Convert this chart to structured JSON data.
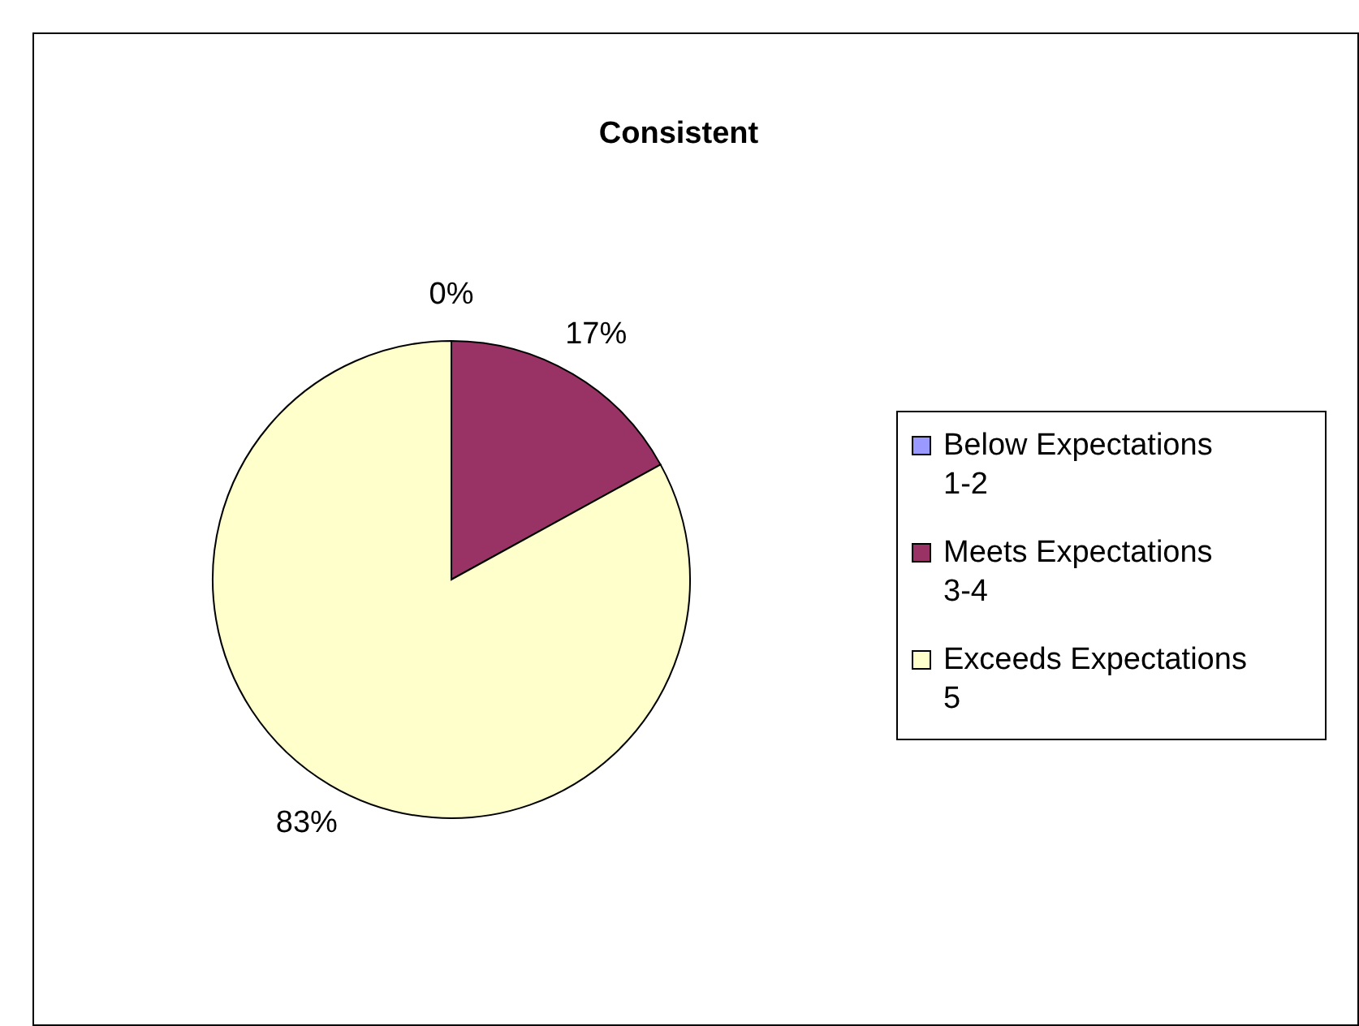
{
  "chart_data": {
    "type": "pie",
    "title": "Consistent",
    "categories": [
      "Below Expectations 1-2",
      "Meets Expectations 3-4",
      "Exceeds Expectations 5"
    ],
    "values": [
      0,
      17,
      83
    ],
    "colors": [
      "#9999ff",
      "#993366",
      "#ffffcc"
    ],
    "value_labels": [
      "0%",
      "17%",
      "83%"
    ],
    "legend": "right"
  }
}
